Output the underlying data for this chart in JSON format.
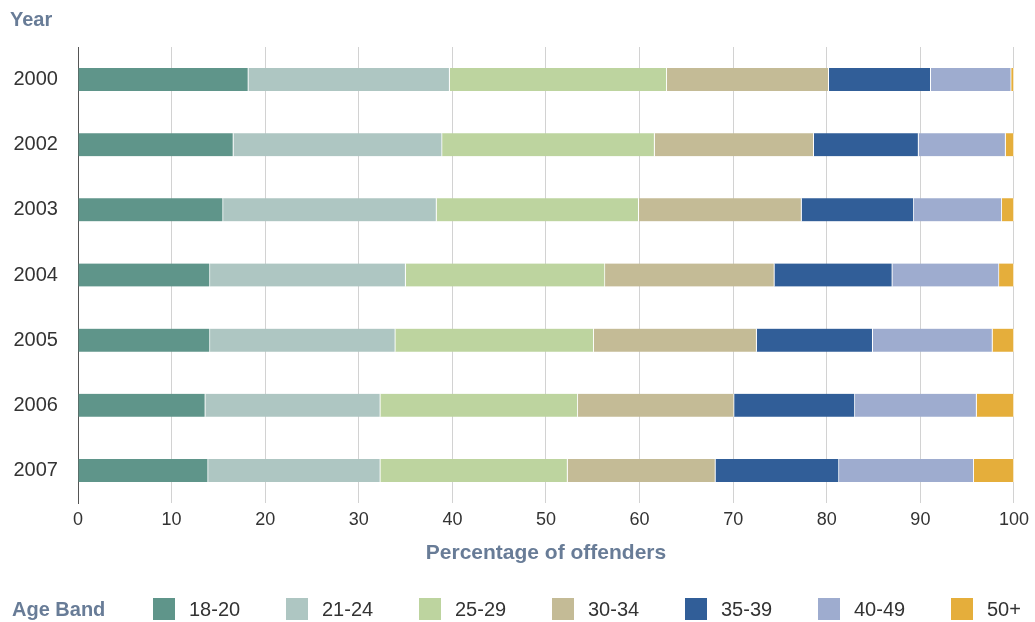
{
  "chart_data": {
    "type": "bar",
    "orientation": "horizontal",
    "stacked": true,
    "ylabel": "Year",
    "xlabel": "Percentage of offenders",
    "legend_title": "Age Band",
    "legend": "bottom",
    "grid": "x",
    "categories": [
      "2000",
      "2002",
      "2003",
      "2004",
      "2005",
      "2006",
      "2007"
    ],
    "xlim": [
      0,
      100
    ],
    "xticks": [
      0,
      10,
      20,
      30,
      40,
      50,
      60,
      70,
      80,
      90,
      100
    ],
    "series": [
      {
        "name": "18-20",
        "color": "#5f958a",
        "values": [
          18.2,
          16.6,
          15.5,
          14.1,
          14.1,
          13.6,
          13.9
        ]
      },
      {
        "name": "21-24",
        "color": "#aec6c2",
        "values": [
          21.5,
          22.3,
          22.8,
          20.9,
          19.8,
          18.7,
          18.4
        ]
      },
      {
        "name": "25-29",
        "color": "#bdd49f",
        "values": [
          23.2,
          22.7,
          21.6,
          21.3,
          21.2,
          21.1,
          20.0
        ]
      },
      {
        "name": "30-34",
        "color": "#c4bb96",
        "values": [
          17.3,
          17.0,
          17.4,
          18.1,
          17.4,
          16.7,
          15.8
        ]
      },
      {
        "name": "35-39",
        "color": "#315e98",
        "values": [
          10.9,
          11.2,
          12.0,
          12.6,
          12.4,
          12.9,
          13.2
        ]
      },
      {
        "name": "40-49",
        "color": "#9eaccf",
        "values": [
          8.6,
          9.3,
          9.4,
          11.4,
          12.8,
          13.0,
          14.4
        ]
      },
      {
        "name": "50+",
        "color": "#e5ae3b",
        "values": [
          0.3,
          0.9,
          1.3,
          1.6,
          2.3,
          4.0,
          4.3
        ]
      }
    ]
  }
}
